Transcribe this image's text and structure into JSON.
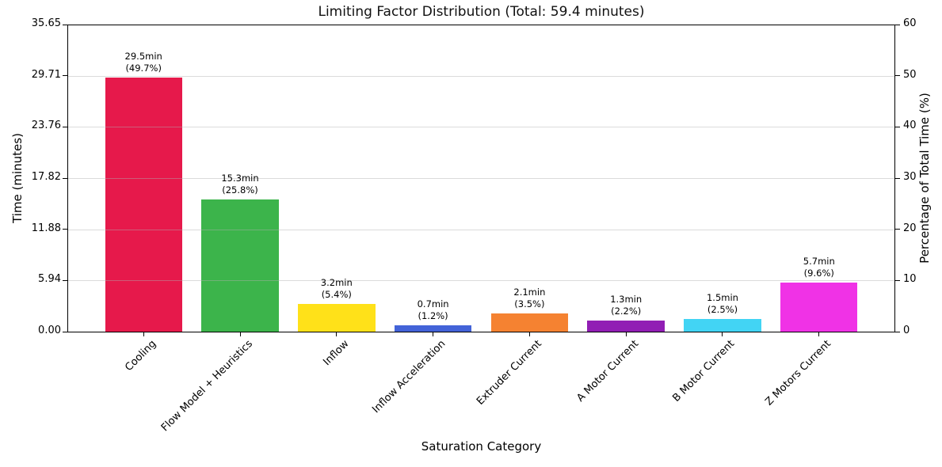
{
  "title": "Limiting Factor Distribution (Total: 59.4 minutes)",
  "axis_labels": {
    "x": "Saturation Category",
    "y_left": "Time (minutes)",
    "y_right": "Percentage of Total Time (%)"
  },
  "chart_data": {
    "type": "bar",
    "title": "Limiting Factor Distribution (Total: 59.4 minutes)",
    "total_minutes": 59.4,
    "xlabel": "Saturation Category",
    "ylabel": "Time (minutes)",
    "ylabel_right": "Percentage of Total Time (%)",
    "categories": [
      "Cooling",
      "Flow Model + Heuristics",
      "Inflow",
      "Inflow Acceleration",
      "Extruder Current",
      "A Motor Current",
      "B Motor Current",
      "Z Motors Current"
    ],
    "values_minutes": [
      29.5,
      15.3,
      3.2,
      0.7,
      2.1,
      1.3,
      1.5,
      5.7
    ],
    "values_percent": [
      49.7,
      25.8,
      5.4,
      1.2,
      3.5,
      2.2,
      2.5,
      9.6
    ],
    "bar_annotations": [
      {
        "line1": "29.5min",
        "line2": "(49.7%)"
      },
      {
        "line1": "15.3min",
        "line2": "(25.8%)"
      },
      {
        "line1": "3.2min",
        "line2": "(5.4%)"
      },
      {
        "line1": "0.7min",
        "line2": "(1.2%)"
      },
      {
        "line1": "2.1min",
        "line2": "(3.5%)"
      },
      {
        "line1": "1.3min",
        "line2": "(2.2%)"
      },
      {
        "line1": "1.5min",
        "line2": "(2.5%)"
      },
      {
        "line1": "5.7min",
        "line2": "(9.6%)"
      }
    ],
    "bar_colors": [
      "#e6194b",
      "#3cb44b",
      "#ffe119",
      "#4363d8",
      "#f58231",
      "#911eb4",
      "#42d4f4",
      "#f032e6"
    ],
    "y_left_ticks": [
      "0.00",
      "5.94",
      "11.88",
      "17.82",
      "23.76",
      "29.71",
      "35.65"
    ],
    "y_left_max": 35.65,
    "y_right_ticks": [
      "0",
      "10",
      "20",
      "30",
      "40",
      "50",
      "60"
    ],
    "y_right_max": 60,
    "grid": true,
    "legend_position": "none"
  }
}
